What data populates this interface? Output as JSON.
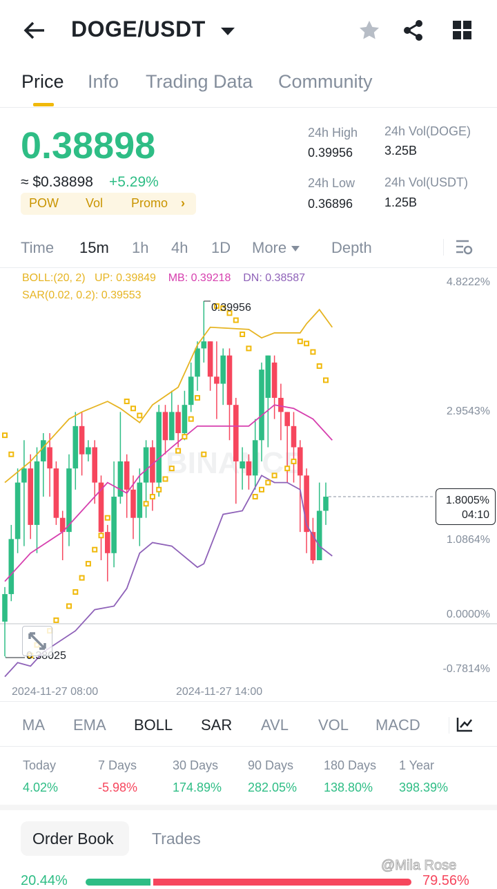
{
  "header": {
    "title": "DOGE/USDT",
    "back_icon": "arrow-left-icon",
    "star_icon": "star-icon",
    "share_icon": "share-icon",
    "grid_icon": "grid-icon"
  },
  "tabs": [
    {
      "label": "Price",
      "active": true
    },
    {
      "label": "Info"
    },
    {
      "label": "Trading Data"
    },
    {
      "label": "Community"
    }
  ],
  "ticker": {
    "last_price": "0.38898",
    "usd_price": "≈ $0.38898",
    "change": "+5.29%",
    "tags": [
      "POW",
      "Vol",
      "Promo"
    ],
    "high_label": "24h High",
    "high": "0.39956",
    "low_label": "24h Low",
    "low": "0.36896",
    "vol_base_label": "24h Vol(DOGE)",
    "vol_base": "3.25B",
    "vol_quote_label": "24h Vol(USDT)",
    "vol_quote": "1.25B"
  },
  "intervals": [
    "Time",
    "15m",
    "1h",
    "4h",
    "1D",
    "More",
    "Depth"
  ],
  "active_interval": "15m",
  "legend": {
    "boll": "BOLL:(20, 2)",
    "up": "UP: 0.39849",
    "mb": "MB: 0.39218",
    "dn": "DN: 0.38587",
    "sar": "SAR(0.02, 0.2): 0.39553"
  },
  "colors": {
    "up": "#2ebd85",
    "down": "#f6465d",
    "boll_up": "#e6b422",
    "boll_mb": "#d63fae",
    "boll_dn": "#8e61b8",
    "sar": "#f0b90b",
    "accent": "#f0b90b"
  },
  "chart_data": {
    "type": "candlestick",
    "y_axis_ticks": [
      "4.8222%",
      "2.9543%",
      "1.0864%",
      "0.0000%",
      "-0.7814%"
    ],
    "y_tick_values": [
      4.8222,
      2.9543,
      1.0864,
      0,
      -0.7814
    ],
    "x_axis_ticks": [
      "2024-11-27 08:00",
      "2024-11-27 14:00"
    ],
    "high_marker": "0.39956",
    "low_marker": "0.38025",
    "current": {
      "value": "1.8005%",
      "countdown": "04:10",
      "pct": 1.8005
    },
    "candles_pct_ohlc": [
      [
        0.03,
        0.42,
        0.52,
        -0.46
      ],
      [
        0.42,
        1.2,
        1.4,
        0.32
      ],
      [
        1.2,
        2.0,
        2.2,
        1.0
      ],
      [
        2.0,
        2.2,
        2.6,
        1.1
      ],
      [
        2.2,
        1.4,
        2.4,
        1.2
      ],
      [
        1.4,
        2.3,
        2.5,
        1.0
      ],
      [
        2.3,
        2.6,
        2.7,
        1.8
      ],
      [
        2.5,
        2.2,
        2.7,
        1.8
      ],
      [
        2.2,
        1.5,
        2.3,
        1.4
      ],
      [
        1.5,
        1.3,
        1.6,
        0.9
      ],
      [
        1.3,
        2.2,
        2.4,
        1.1
      ],
      [
        2.2,
        2.8,
        3.0,
        1.9
      ],
      [
        2.8,
        2.4,
        3.0,
        2.1
      ],
      [
        2.4,
        2.5,
        2.6,
        2.3
      ],
      [
        2.5,
        2.0,
        2.6,
        1.7
      ],
      [
        2.0,
        1.3,
        2.1,
        0.9
      ],
      [
        1.3,
        1.0,
        1.4,
        0.6
      ],
      [
        1.0,
        1.8,
        2.3,
        0.8
      ],
      [
        1.8,
        2.3,
        3.0,
        1.7
      ],
      [
        2.3,
        1.9,
        2.4,
        1.5
      ],
      [
        1.9,
        1.5,
        2.1,
        1.2
      ],
      [
        1.5,
        2.0,
        2.2,
        1.1
      ],
      [
        2.0,
        2.5,
        2.6,
        1.5
      ],
      [
        2.5,
        2.0,
        2.6,
        1.6
      ],
      [
        2.0,
        3.0,
        3.1,
        1.8
      ],
      [
        3.0,
        2.6,
        3.1,
        2.4
      ],
      [
        2.6,
        3.0,
        3.3,
        2.6
      ],
      [
        3.0,
        2.7,
        3.1,
        2.5
      ],
      [
        2.7,
        3.1,
        3.3,
        2.6
      ],
      [
        3.1,
        3.5,
        3.7,
        3.0
      ],
      [
        3.5,
        3.9,
        4.0,
        3.3
      ],
      [
        3.9,
        4.0,
        4.57,
        3.7
      ],
      [
        4.0,
        3.5,
        4.0,
        3.3
      ],
      [
        3.5,
        3.4,
        4.0,
        2.9
      ],
      [
        3.4,
        3.8,
        3.9,
        3.1
      ],
      [
        3.8,
        3.1,
        3.9,
        2.6
      ],
      [
        3.1,
        2.3,
        3.2,
        1.7
      ],
      [
        2.2,
        2.3,
        2.5,
        1.9
      ],
      [
        2.3,
        2.1,
        2.4,
        1.9
      ],
      [
        2.1,
        2.6,
        2.9,
        1.9
      ],
      [
        2.6,
        3.6,
        3.7,
        2.3
      ],
      [
        3.2,
        3.8,
        3.8,
        2.5
      ],
      [
        3.7,
        3.2,
        3.8,
        2.9
      ],
      [
        3.2,
        3.0,
        3.4,
        2.6
      ],
      [
        3.0,
        2.8,
        3.0,
        2.0
      ],
      [
        2.8,
        2.5,
        3.0,
        2.0
      ],
      [
        2.5,
        2.1,
        2.6,
        1.3
      ],
      [
        2.1,
        1.3,
        2.2,
        1.0
      ],
      [
        1.3,
        0.9,
        1.5,
        0.85
      ],
      [
        0.9,
        1.6,
        2.0,
        0.9
      ],
      [
        1.6,
        1.8,
        2.0,
        1.4
      ]
    ],
    "boll_up": [
      [
        0,
        2.0
      ],
      [
        4,
        2.3
      ],
      [
        10,
        2.9
      ],
      [
        12,
        3.0
      ],
      [
        16,
        3.15
      ],
      [
        18,
        3.05
      ],
      [
        21,
        2.85
      ],
      [
        23,
        3.1
      ],
      [
        27,
        3.35
      ],
      [
        30,
        3.95
      ],
      [
        32,
        4.2
      ],
      [
        38,
        4.17
      ],
      [
        40,
        4.05
      ],
      [
        42,
        4.12
      ],
      [
        46,
        4.12
      ],
      [
        47,
        4.25
      ],
      [
        49,
        4.45
      ],
      [
        51,
        4.2
      ]
    ],
    "boll_mb": [
      [
        0,
        0.6
      ],
      [
        4,
        1.0
      ],
      [
        9,
        1.3
      ],
      [
        12,
        1.6
      ],
      [
        16,
        2.0
      ],
      [
        19,
        1.85
      ],
      [
        21,
        2.1
      ],
      [
        26,
        2.5
      ],
      [
        30,
        2.8
      ],
      [
        34,
        2.8
      ],
      [
        38,
        2.8
      ],
      [
        42,
        3.1
      ],
      [
        45,
        3.05
      ],
      [
        48,
        2.9
      ],
      [
        51,
        2.6
      ]
    ],
    "boll_dn": [
      [
        0,
        -0.75
      ],
      [
        2,
        -0.55
      ],
      [
        4,
        -0.6
      ],
      [
        6,
        -0.4
      ],
      [
        11,
        -0.1
      ],
      [
        14,
        0.2
      ],
      [
        17,
        0.25
      ],
      [
        19,
        0.5
      ],
      [
        21,
        1.0
      ],
      [
        23,
        1.15
      ],
      [
        26,
        1.1
      ],
      [
        30,
        0.8
      ],
      [
        31,
        0.85
      ],
      [
        34,
        1.55
      ],
      [
        37,
        1.6
      ],
      [
        40,
        2.1
      ],
      [
        42,
        2.0
      ],
      [
        44,
        2.0
      ],
      [
        46,
        1.9
      ],
      [
        47,
        1.4
      ],
      [
        49,
        1.1
      ],
      [
        51,
        0.96
      ]
    ],
    "sar": [
      [
        0,
        2.67
      ],
      [
        1,
        2.4
      ],
      [
        4,
        -0.45
      ],
      [
        5,
        -0.3
      ],
      [
        7,
        -0.1
      ],
      [
        8,
        0.05
      ],
      [
        10,
        0.25
      ],
      [
        11,
        0.45
      ],
      [
        12,
        0.65
      ],
      [
        13,
        0.85
      ],
      [
        14,
        1.05
      ],
      [
        15,
        1.25
      ],
      [
        16,
        1.5
      ],
      [
        19,
        3.15
      ],
      [
        20,
        3.05
      ],
      [
        21,
        2.95
      ],
      [
        22,
        1.7
      ],
      [
        23,
        1.8
      ],
      [
        24,
        1.9
      ],
      [
        25,
        2.05
      ],
      [
        26,
        2.2
      ],
      [
        27,
        2.45
      ],
      [
        28,
        2.65
      ],
      [
        29,
        2.9
      ],
      [
        30,
        3.2
      ],
      [
        31,
        2.4
      ],
      [
        33,
        4.5
      ],
      [
        34,
        4.47
      ],
      [
        35,
        4.4
      ],
      [
        36,
        4.3
      ],
      [
        37,
        4.1
      ],
      [
        38,
        3.9
      ],
      [
        39,
        1.8
      ],
      [
        40,
        1.9
      ],
      [
        41,
        2.0
      ],
      [
        42,
        2.1
      ],
      [
        44,
        2.2
      ],
      [
        45,
        2.3
      ],
      [
        46,
        4.0
      ],
      [
        47,
        3.97
      ],
      [
        48,
        3.85
      ],
      [
        49,
        3.65
      ],
      [
        50,
        3.45
      ]
    ]
  },
  "indicators": [
    "MA",
    "EMA",
    "BOLL",
    "SAR",
    "AVL",
    "VOL",
    "MACD"
  ],
  "active_indicators": [
    "BOLL",
    "SAR"
  ],
  "periods": [
    {
      "label": "Today",
      "value": "4.02%",
      "dir": "up"
    },
    {
      "label": "7 Days",
      "value": "-5.98%",
      "dir": "down"
    },
    {
      "label": "30 Days",
      "value": "174.89%",
      "dir": "up"
    },
    {
      "label": "90 Days",
      "value": "282.05%",
      "dir": "up"
    },
    {
      "label": "180 Days",
      "value": "138.80%",
      "dir": "up"
    },
    {
      "label": "1 Year",
      "value": "398.39%",
      "dir": "up"
    }
  ],
  "book_tabs": [
    "Order Book",
    "Trades"
  ],
  "depth": {
    "bid": "20.44%",
    "ask": "79.56%",
    "bid_fraction": 0.2044
  },
  "watermark": "@Mila Rose",
  "chart_watermark": "BINANCE"
}
